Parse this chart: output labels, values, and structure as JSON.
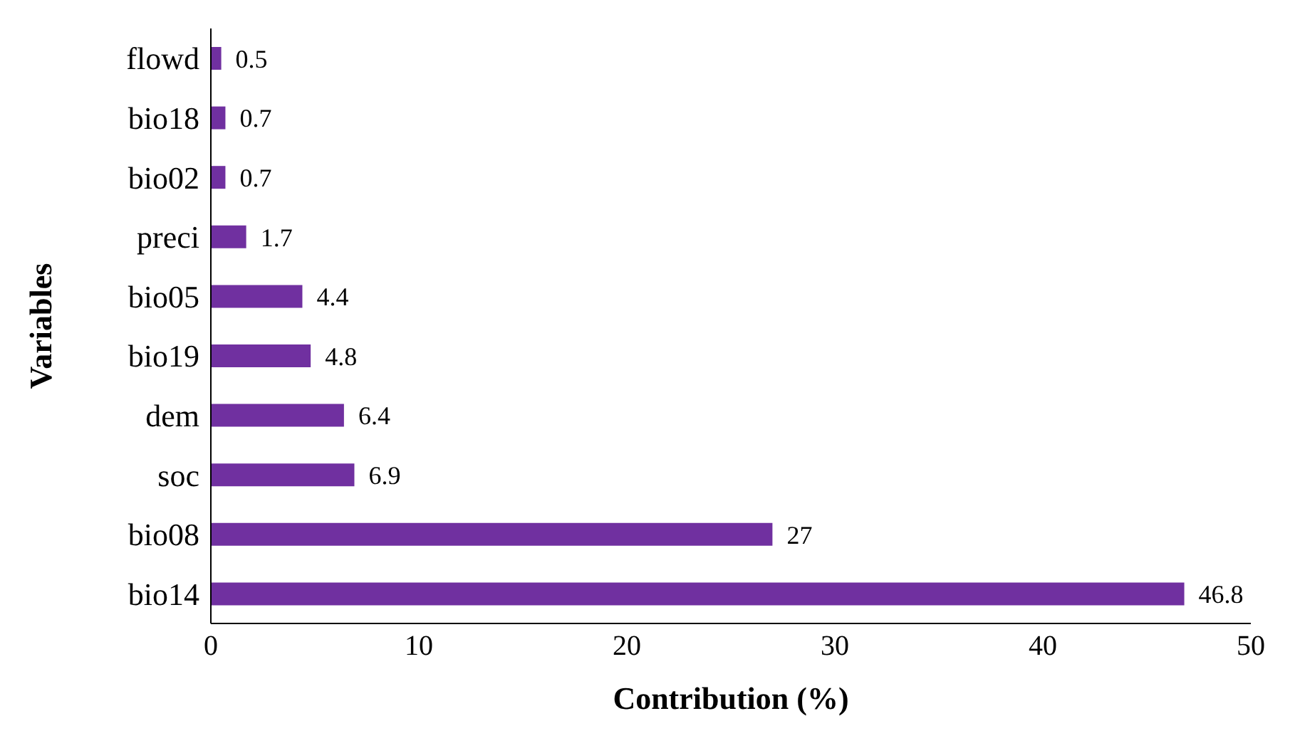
{
  "chart_data": {
    "type": "bar",
    "orientation": "horizontal",
    "xlabel": "Contribution (%)",
    "ylabel": "Variables",
    "categories": [
      "flowd",
      "bio18",
      "bio02",
      "preci",
      "bio05",
      "bio19",
      "dem",
      "soc",
      "bio08",
      "bio14"
    ],
    "values": [
      0.5,
      0.7,
      0.7,
      1.7,
      4.4,
      4.8,
      6.4,
      6.9,
      27,
      46.8
    ],
    "color": "#7030a0",
    "xlim": [
      0,
      50
    ],
    "xticks": [
      0,
      10,
      20,
      30,
      40,
      50
    ],
    "grid": false,
    "legend": false,
    "data_labels": true
  }
}
